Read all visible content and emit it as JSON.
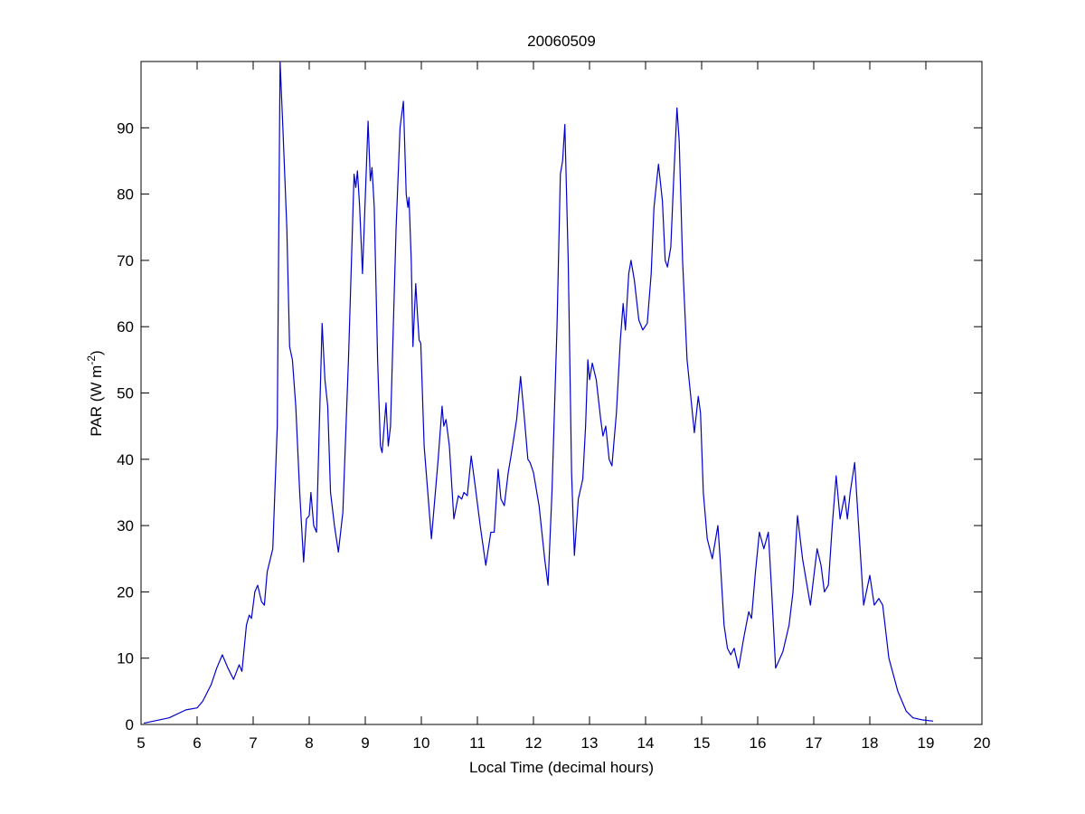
{
  "chart_data": {
    "type": "line",
    "title": "20060509",
    "xlabel": "Local Time (decimal hours)",
    "ylabel": [
      "PAR (W m",
      "-2",
      ")"
    ],
    "color": "#0000cc",
    "xlim": [
      5,
      20
    ],
    "xticks": [
      5,
      6,
      7,
      8,
      9,
      10,
      11,
      12,
      13,
      14,
      15,
      16,
      17,
      18,
      19,
      20
    ],
    "ylim": [
      0,
      100
    ],
    "yticks": [
      0,
      10,
      20,
      30,
      40,
      50,
      60,
      70,
      80,
      90
    ],
    "grid": false,
    "x": [
      5.05,
      5.5,
      5.8,
      6.0,
      6.1,
      6.25,
      6.35,
      6.45,
      6.55,
      6.65,
      6.75,
      6.8,
      6.88,
      6.93,
      6.97,
      7.03,
      7.08,
      7.15,
      7.2,
      7.25,
      7.35,
      7.43,
      7.48,
      7.53,
      7.6,
      7.65,
      7.7,
      7.76,
      7.83,
      7.9,
      7.95,
      8.0,
      8.03,
      8.08,
      8.13,
      8.18,
      8.23,
      8.28,
      8.33,
      8.38,
      8.45,
      8.52,
      8.6,
      8.7,
      8.8,
      8.83,
      8.86,
      8.9,
      8.95,
      9.05,
      9.09,
      9.12,
      9.16,
      9.22,
      9.27,
      9.3,
      9.37,
      9.41,
      9.45,
      9.55,
      9.62,
      9.68,
      9.73,
      9.76,
      9.78,
      9.82,
      9.85,
      9.9,
      9.93,
      9.96,
      9.99,
      10.05,
      10.18,
      10.25,
      10.3,
      10.37,
      10.4,
      10.44,
      10.5,
      10.58,
      10.66,
      10.72,
      10.76,
      10.82,
      10.89,
      10.96,
      11.05,
      11.15,
      11.24,
      11.3,
      11.37,
      11.42,
      11.48,
      11.55,
      11.6,
      11.7,
      11.77,
      11.83,
      11.9,
      11.94,
      12.0,
      12.1,
      12.2,
      12.26,
      12.33,
      12.42,
      12.48,
      12.52,
      12.56,
      12.62,
      12.68,
      12.73,
      12.8,
      12.88,
      12.93,
      12.97,
      13.0,
      13.05,
      13.12,
      13.2,
      13.24,
      13.29,
      13.35,
      13.4,
      13.48,
      13.55,
      13.6,
      13.64,
      13.7,
      13.74,
      13.8,
      13.88,
      13.95,
      14.03,
      14.1,
      14.15,
      14.23,
      14.3,
      14.35,
      14.39,
      14.45,
      14.5,
      14.56,
      14.6,
      14.66,
      14.74,
      14.8,
      14.87,
      14.94,
      14.98,
      15.03,
      15.1,
      15.19,
      15.29,
      15.33,
      15.4,
      15.46,
      15.52,
      15.58,
      15.66,
      15.75,
      15.84,
      15.89,
      15.96,
      16.03,
      16.11,
      16.19,
      16.25,
      16.32,
      16.45,
      16.56,
      16.63,
      16.71,
      16.8,
      16.94,
      17.06,
      17.13,
      17.19,
      17.26,
      17.33,
      17.4,
      17.47,
      17.55,
      17.6,
      17.65,
      17.73,
      17.8,
      17.89,
      18.0,
      18.08,
      18.16,
      18.23,
      18.34,
      18.5,
      18.65,
      18.77,
      18.93,
      19.13
    ],
    "values": [
      0.2,
      1.0,
      2.2,
      2.5,
      3.5,
      6,
      8.5,
      10.5,
      8.5,
      6.8,
      9,
      8,
      15,
      16.5,
      16,
      20,
      21,
      18.5,
      18,
      23,
      26.5,
      45,
      100,
      90,
      75,
      57,
      55,
      48,
      35,
      24.5,
      31,
      31.5,
      35,
      30,
      29,
      45,
      60.5,
      52,
      48,
      35,
      30,
      26,
      32,
      55,
      83,
      81,
      83.5,
      78,
      68,
      91,
      82,
      84,
      78,
      55,
      42,
      41,
      48.5,
      42,
      45,
      75,
      90,
      94,
      80,
      78,
      79.5,
      70,
      57,
      66.5,
      62,
      58,
      57.5,
      42,
      28,
      35,
      40,
      48,
      45,
      46,
      42,
      31,
      34.5,
      34,
      35,
      34.5,
      40.5,
      36,
      30,
      24,
      29,
      29,
      38.5,
      34,
      33,
      38,
      40.5,
      46,
      52.5,
      47,
      40,
      39.5,
      38,
      33,
      25,
      21,
      35,
      60,
      83,
      85,
      90.5,
      70,
      38,
      25.5,
      34,
      37,
      45,
      55,
      52,
      54.5,
      52,
      46,
      43.5,
      45,
      40,
      39,
      47,
      58,
      63.5,
      59.5,
      68,
      70,
      67,
      61,
      59.5,
      60.5,
      68,
      78,
      84.5,
      79,
      70,
      69,
      72,
      82,
      93,
      88,
      70,
      55,
      50,
      44,
      49.5,
      47,
      35,
      28,
      25,
      30,
      25,
      15,
      11.5,
      10.5,
      11.5,
      8.5,
      13,
      17,
      16,
      23,
      29,
      26.5,
      29,
      20,
      8.5,
      11,
      15,
      20,
      31.5,
      25,
      18,
      26.5,
      24,
      20,
      21,
      30,
      37.5,
      31,
      34.5,
      31,
      35,
      39.5,
      30,
      18,
      22.5,
      18,
      19,
      18,
      10,
      5,
      2,
      1,
      0.7,
      0.5
    ]
  }
}
